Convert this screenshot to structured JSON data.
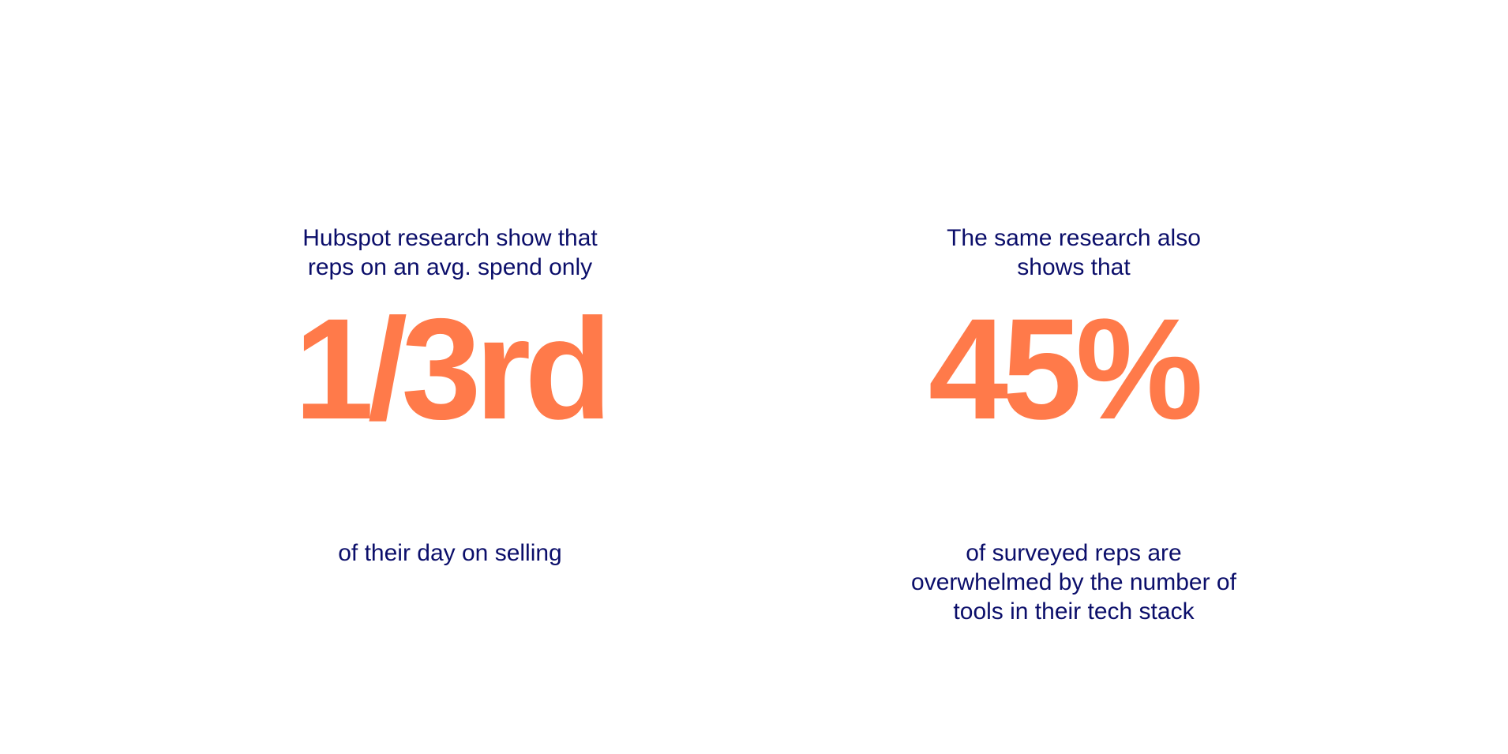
{
  "colors": {
    "text": "#0b0e6a",
    "accent": "#ff7a4a",
    "background": "#ffffff"
  },
  "stats": [
    {
      "intro": "Hubspot research show that\nreps on an avg. spend only",
      "value": "1/3rd",
      "outro": "of their day on selling"
    },
    {
      "intro": "The same research also\nshows that",
      "value": "45%",
      "outro": "of surveyed reps are\noverwhelmed by the number of\ntools in their tech stack"
    }
  ]
}
